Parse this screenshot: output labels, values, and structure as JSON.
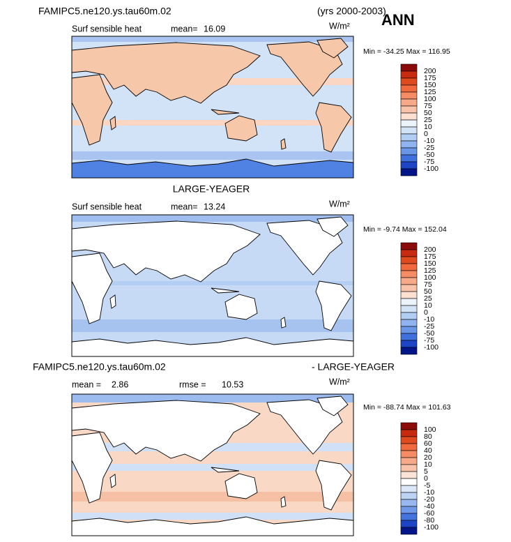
{
  "header": {
    "case": "FAMIPC5.ne120.ys.tau60m.02",
    "years": "(yrs 2000-2003)",
    "season": "ANN"
  },
  "panels": [
    {
      "variable": "Surf sensible heat",
      "mean_label": "mean=",
      "mean": "16.09",
      "units": "W/m²",
      "min_max": "Min = -34.25 Max = 116.95",
      "colorbar": [
        200,
        175,
        150,
        125,
        100,
        75,
        50,
        25,
        10,
        0,
        -10,
        -25,
        -50,
        -75,
        -100
      ]
    },
    {
      "title": "LARGE-YEAGER",
      "variable": "Surf sensible heat",
      "mean_label": "mean=",
      "mean": "13.24",
      "units": "W/m²",
      "min_max": "Min = -9.74 Max = 152.04",
      "colorbar": [
        200,
        175,
        150,
        125,
        100,
        75,
        50,
        25,
        10,
        0,
        -10,
        -25,
        -50,
        -75,
        -100
      ]
    },
    {
      "case": "FAMIPC5.ne120.ys.tau60m.02",
      "title": "- LARGE-YEAGER",
      "mean_label": "mean =",
      "mean": "2.86",
      "rmse_label": "rmse =",
      "rmse": "10.53",
      "units": "W/m²",
      "min_max": "Min = -88.74 Max = 101.63",
      "colorbar": [
        100,
        80,
        60,
        40,
        20,
        10,
        5,
        0,
        -5,
        -10,
        -20,
        -40,
        -60,
        -80,
        -100
      ]
    }
  ]
}
